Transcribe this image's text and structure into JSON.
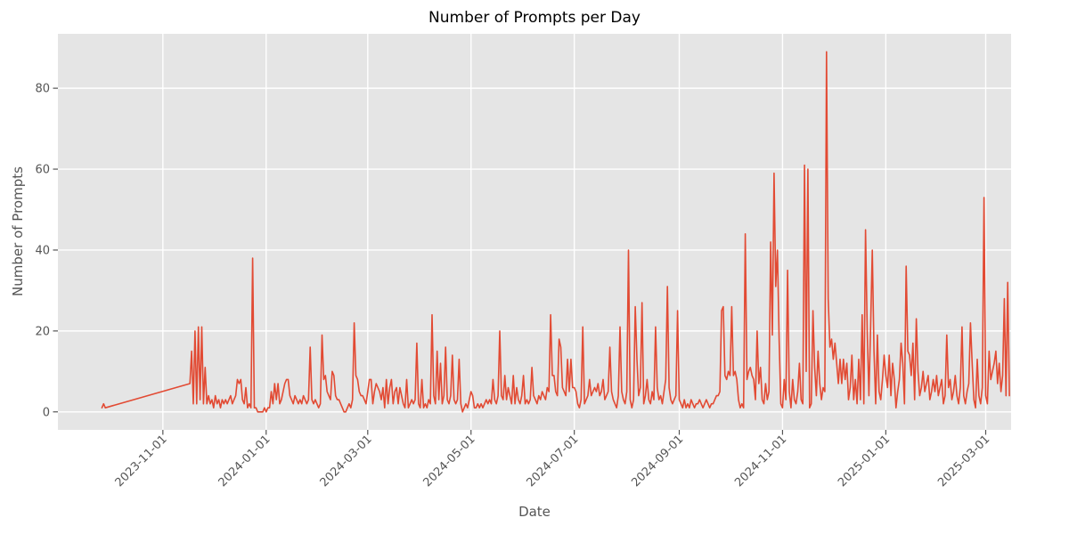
{
  "figure": {
    "background": "#FFFFFF"
  },
  "chart_data": {
    "type": "line",
    "title": "Number of Prompts per Day",
    "xlabel": "Date",
    "ylabel": "Number of Prompts",
    "legend": "none",
    "grid": "on",
    "plot_background": "#E5E5E5",
    "grid_color": "#FFFFFF",
    "line_color": "#E24A33",
    "tick_color": "#555555",
    "x_tick_labels": [
      "2023-11-01",
      "2024-01-01",
      "2024-03-01",
      "2024-05-01",
      "2024-07-01",
      "2024-09-01",
      "2024-11-01",
      "2025-01-01",
      "2025-03-01"
    ],
    "y_tick_labels": [
      0,
      20,
      40,
      60,
      80
    ],
    "xlim": [
      "2023-08-31",
      "2025-03-16"
    ],
    "ylim": [
      -4.45,
      93.45
    ],
    "series": [
      {
        "name": "prompts_per_day",
        "segments": [
          {
            "start_date": "2023-09-26",
            "daily_values": [
              1,
              2,
              1
            ]
          },
          {
            "start_date": "2023-11-17",
            "daily_values": [
              7,
              15,
              2,
              20,
              2,
              21,
              3,
              21,
              2,
              11,
              2,
              4,
              2,
              3,
              1,
              4,
              2,
              3,
              1,
              3,
              2,
              3,
              2,
              3,
              4,
              2,
              3,
              4,
              8,
              7,
              8,
              3,
              2,
              6,
              1,
              2,
              1,
              38,
              1,
              1,
              0,
              0,
              0,
              0,
              1,
              0,
              1,
              1,
              5,
              2,
              7,
              3,
              7,
              2,
              3,
              5,
              7,
              8,
              8,
              4,
              3,
              2,
              4,
              3,
              2,
              3,
              2,
              4,
              3,
              2,
              3,
              16,
              3,
              2,
              3,
              2,
              1,
              2,
              19,
              8,
              9,
              5,
              4,
              3,
              10,
              9,
              4,
              3,
              3,
              2,
              1,
              0,
              0,
              1,
              2,
              1,
              3,
              22,
              9,
              8,
              5,
              4,
              4,
              3,
              2,
              5,
              8,
              8,
              2,
              5,
              7,
              6,
              5,
              3,
              6,
              1,
              8,
              2,
              6,
              8,
              2,
              5,
              6,
              2,
              6,
              4,
              2,
              1,
              8,
              1,
              2,
              3,
              2,
              3,
              17,
              2,
              1,
              8,
              1,
              2,
              1,
              3,
              2,
              24,
              4,
              2,
              15,
              3,
              12,
              2,
              4,
              16,
              3,
              2,
              4,
              14,
              3,
              2,
              3,
              13,
              2,
              0,
              1,
              2,
              1,
              3,
              5,
              4,
              1,
              1,
              2,
              1,
              2,
              1,
              2,
              3,
              2,
              3,
              2,
              8,
              3,
              2,
              4,
              20,
              4,
              3,
              9,
              3,
              6,
              4,
              2,
              9,
              2,
              6,
              3,
              2,
              4,
              9,
              2,
              3,
              2,
              3,
              11,
              4,
              3,
              2,
              4,
              3,
              5,
              4,
              3,
              6,
              5,
              24,
              9,
              9,
              5,
              4,
              18,
              16,
              6,
              5,
              4,
              13,
              5,
              13,
              6,
              6,
              5,
              2,
              1,
              3,
              21,
              2,
              3,
              4,
              8,
              4,
              5,
              6,
              5,
              7,
              4,
              5,
              8,
              3,
              4,
              5,
              16,
              5,
              3,
              2,
              1,
              4,
              21,
              5,
              3,
              2,
              5,
              40,
              3,
              1,
              3,
              26,
              13,
              4,
              6,
              27,
              2,
              4,
              8,
              3,
              2,
              5,
              3,
              21,
              6,
              3,
              4,
              2,
              5,
              8,
              31,
              6,
              3,
              2,
              3,
              4,
              25,
              3,
              2,
              1,
              3,
              1,
              2,
              1,
              3,
              2,
              1,
              2,
              2,
              3,
              2,
              1,
              2,
              3,
              2,
              1,
              2,
              2,
              3,
              4,
              4,
              5,
              25,
              26,
              9,
              8,
              10,
              9,
              26,
              9,
              10,
              8,
              3,
              1,
              2,
              1,
              44,
              8,
              10,
              11,
              9,
              8,
              3,
              20,
              7,
              11,
              3,
              2,
              7,
              3,
              5,
              42,
              19,
              59,
              31,
              40,
              18,
              2,
              1,
              8,
              3,
              35,
              5,
              1,
              8,
              3,
              2,
              5,
              12,
              3,
              2,
              61,
              10,
              60,
              1,
              2,
              25,
              11,
              4,
              15,
              7,
              3,
              6,
              5,
              89,
              28,
              16,
              18,
              13,
              17,
              12,
              7,
              13,
              7,
              13,
              8,
              12,
              3,
              6,
              14,
              3,
              8,
              2,
              13,
              3,
              24,
              2,
              45,
              20,
              4,
              21,
              40,
              15,
              2,
              19,
              5,
              3,
              8,
              14,
              9,
              6,
              14,
              4,
              12,
              8,
              1,
              5,
              8,
              17,
              12,
              2,
              36,
              15,
              14,
              9,
              17,
              3,
              23,
              10,
              4,
              6,
              10,
              5,
              7,
              9,
              3,
              5,
              8,
              5,
              9,
              4,
              6,
              8,
              2,
              4,
              19,
              6,
              8,
              3,
              5,
              9,
              4,
              2,
              6,
              21,
              4,
              2,
              5,
              7,
              22,
              12,
              3,
              1,
              13,
              4,
              2,
              6,
              53,
              4,
              2,
              15,
              8,
              10,
              12,
              15,
              7,
              12,
              5,
              9,
              28,
              4,
              32,
              4
            ]
          }
        ]
      }
    ]
  }
}
